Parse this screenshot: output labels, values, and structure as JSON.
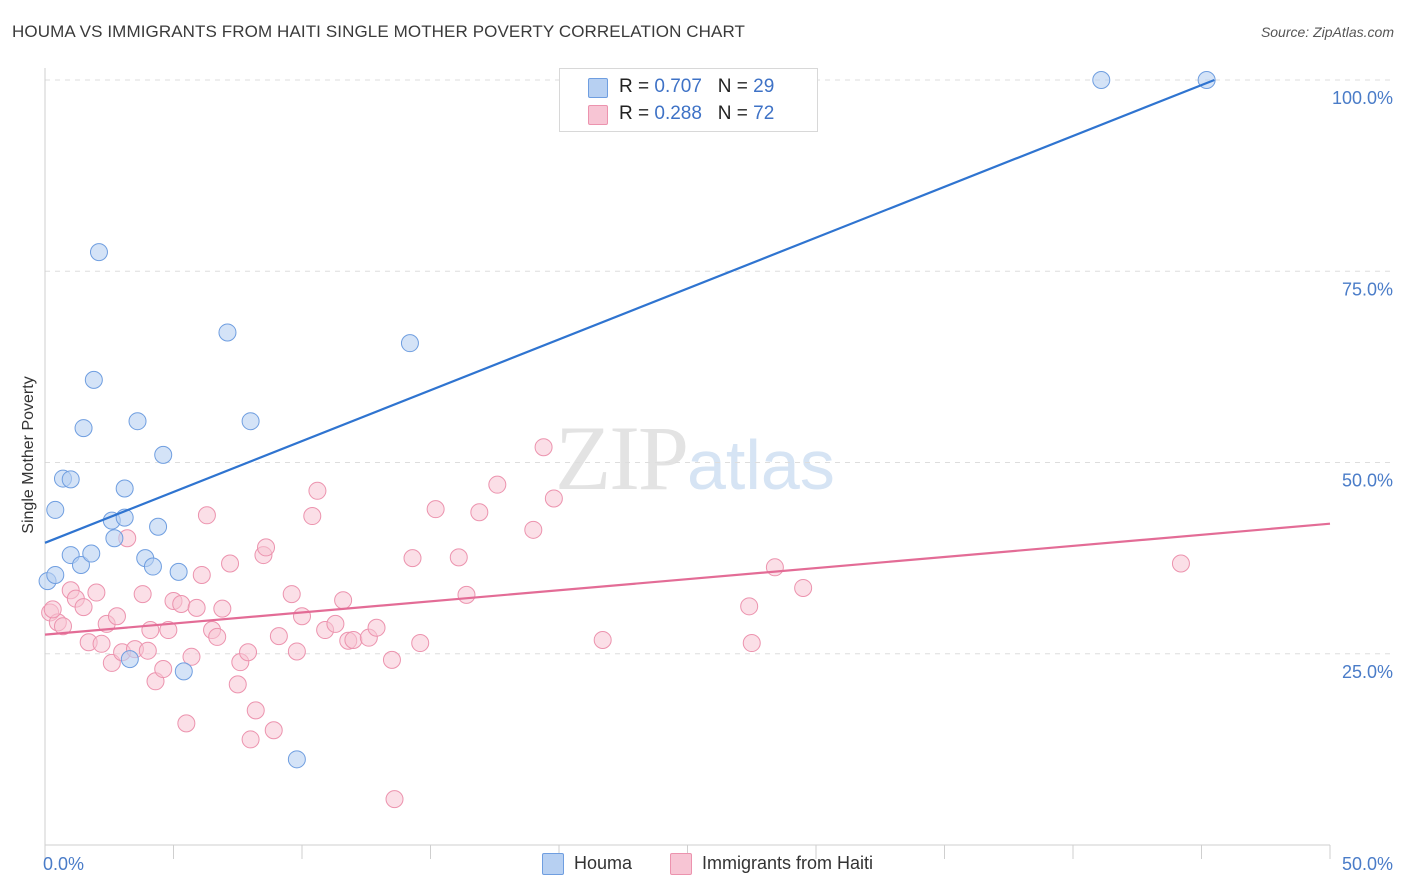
{
  "title": "HOUMA VS IMMIGRANTS FROM HAITI SINGLE MOTHER POVERTY CORRELATION CHART",
  "source": "Source: ZipAtlas.com",
  "watermark": {
    "zip": "ZIP",
    "atlas": "atlas"
  },
  "colors": {
    "blue_fill": "#b7d0f2",
    "blue_stroke": "#6f9ee0",
    "blue_line": "#2f74d0",
    "pink_fill": "#f7c5d4",
    "pink_stroke": "#ec93ae",
    "pink_line": "#e36c96",
    "tick_text": "#4a7cc8",
    "grid": "#dddddd"
  },
  "legend": {
    "series1": {
      "r_label": "R = ",
      "r_value": "0.707",
      "n_label": "N = ",
      "n_value": "29"
    },
    "series2": {
      "r_label": "R = ",
      "r_value": "0.288",
      "n_label": "N = ",
      "n_value": "72"
    }
  },
  "bottom_legend": [
    "Houma",
    "Immigrants from Haiti"
  ],
  "chart_data": {
    "type": "scatter",
    "title": "HOUMA VS IMMIGRANTS FROM HAITI SINGLE MOTHER POVERTY CORRELATION CHART",
    "xlabel": "",
    "ylabel": "Single Mother Poverty",
    "xlim": [
      0,
      50
    ],
    "ylim": [
      0,
      100
    ],
    "x_tick_labels": [
      "0.0%",
      "50.0%"
    ],
    "y_ticks": [
      25,
      50,
      75,
      100
    ],
    "y_tick_labels": [
      "25.0%",
      "50.0%",
      "75.0%",
      "100.0%"
    ],
    "grid": true,
    "legend_position": "top-center",
    "series": [
      {
        "name": "Houma",
        "R": 0.707,
        "N": 29,
        "trend": {
          "x": [
            0,
            45.5
          ],
          "y": [
            39.5,
            100
          ]
        },
        "points": [
          [
            0.1,
            34.5
          ],
          [
            0.4,
            35.3
          ],
          [
            0.4,
            43.8
          ],
          [
            0.7,
            47.9
          ],
          [
            1.0,
            47.8
          ],
          [
            1.0,
            37.9
          ],
          [
            1.4,
            36.6
          ],
          [
            1.5,
            54.5
          ],
          [
            1.8,
            38.1
          ],
          [
            1.9,
            60.8
          ],
          [
            2.1,
            77.5
          ],
          [
            2.6,
            42.4
          ],
          [
            2.7,
            40.1
          ],
          [
            3.1,
            42.8
          ],
          [
            3.1,
            46.6
          ],
          [
            3.3,
            24.3
          ],
          [
            3.6,
            55.4
          ],
          [
            3.9,
            37.5
          ],
          [
            4.2,
            36.4
          ],
          [
            4.4,
            41.6
          ],
          [
            4.6,
            51.0
          ],
          [
            5.2,
            35.7
          ],
          [
            5.4,
            22.7
          ],
          [
            7.1,
            67.0
          ],
          [
            8.0,
            55.4
          ],
          [
            9.8,
            11.2
          ],
          [
            14.2,
            65.6
          ],
          [
            41.1,
            100
          ],
          [
            45.2,
            100
          ]
        ]
      },
      {
        "name": "Immigrants from Haiti",
        "R": 0.288,
        "N": 72,
        "trend": {
          "x": [
            0,
            50
          ],
          "y": [
            27.5,
            42.0
          ]
        },
        "points": [
          [
            0.2,
            30.4
          ],
          [
            0.5,
            29.1
          ],
          [
            0.7,
            28.6
          ],
          [
            1.0,
            33.3
          ],
          [
            1.2,
            32.2
          ],
          [
            1.5,
            31.1
          ],
          [
            1.7,
            26.5
          ],
          [
            2.0,
            33.0
          ],
          [
            2.2,
            26.3
          ],
          [
            2.4,
            28.9
          ],
          [
            2.6,
            23.8
          ],
          [
            2.8,
            29.9
          ],
          [
            3.0,
            25.2
          ],
          [
            3.2,
            40.1
          ],
          [
            3.5,
            25.6
          ],
          [
            3.8,
            32.8
          ],
          [
            4.0,
            25.4
          ],
          [
            4.1,
            28.1
          ],
          [
            4.3,
            21.4
          ],
          [
            4.6,
            23.0
          ],
          [
            4.8,
            28.1
          ],
          [
            5.0,
            31.9
          ],
          [
            5.3,
            31.5
          ],
          [
            5.5,
            15.9
          ],
          [
            5.7,
            24.6
          ],
          [
            5.9,
            31.0
          ],
          [
            6.1,
            35.3
          ],
          [
            6.3,
            43.1
          ],
          [
            6.5,
            28.1
          ],
          [
            6.7,
            27.2
          ],
          [
            6.9,
            30.9
          ],
          [
            7.2,
            36.8
          ],
          [
            7.5,
            21.0
          ],
          [
            7.6,
            23.9
          ],
          [
            7.9,
            25.2
          ],
          [
            8.0,
            13.8
          ],
          [
            8.2,
            17.6
          ],
          [
            8.5,
            37.9
          ],
          [
            8.6,
            38.9
          ],
          [
            8.9,
            15.0
          ],
          [
            9.1,
            27.3
          ],
          [
            9.6,
            32.8
          ],
          [
            9.8,
            25.3
          ],
          [
            10.0,
            29.9
          ],
          [
            10.4,
            43.0
          ],
          [
            10.6,
            46.3
          ],
          [
            10.9,
            28.1
          ],
          [
            11.3,
            28.9
          ],
          [
            11.6,
            32.0
          ],
          [
            11.8,
            26.7
          ],
          [
            12.0,
            26.8
          ],
          [
            12.6,
            27.1
          ],
          [
            12.9,
            28.4
          ],
          [
            13.5,
            24.2
          ],
          [
            13.6,
            6.0
          ],
          [
            14.3,
            37.5
          ],
          [
            14.6,
            26.4
          ],
          [
            15.2,
            43.9
          ],
          [
            16.1,
            37.6
          ],
          [
            16.4,
            32.7
          ],
          [
            16.9,
            43.5
          ],
          [
            17.6,
            47.1
          ],
          [
            19.0,
            41.2
          ],
          [
            19.4,
            52.0
          ],
          [
            19.8,
            45.3
          ],
          [
            21.7,
            26.8
          ],
          [
            27.4,
            31.2
          ],
          [
            27.5,
            26.4
          ],
          [
            28.4,
            36.3
          ],
          [
            29.5,
            33.6
          ],
          [
            44.2,
            36.8
          ],
          [
            0.3,
            30.8
          ]
        ]
      }
    ]
  }
}
